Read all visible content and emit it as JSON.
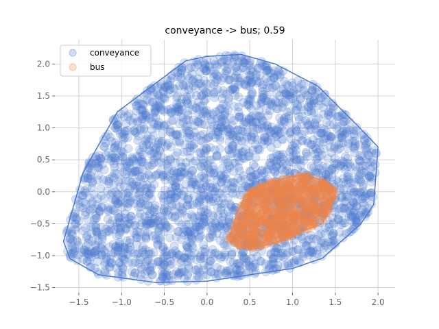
{
  "chart_data": {
    "type": "scatter",
    "title": "conveyance -> bus; 0.59",
    "xlabel": "",
    "ylabel": "",
    "xlim": [
      -1.78,
      2.2
    ],
    "ylim": [
      -1.58,
      2.38
    ],
    "grid": true,
    "legend_position": "top-left",
    "x_ticks": [
      -1.5,
      -1.0,
      -0.5,
      0.0,
      0.5,
      1.0,
      1.5,
      2.0
    ],
    "y_ticks": [
      -1.5,
      -1.0,
      -0.5,
      0.0,
      0.5,
      1.0,
      1.5,
      2.0
    ],
    "x_tick_labels": [
      "−1.5",
      "−1.0",
      "−0.5",
      "0.0",
      "0.5",
      "1.0",
      "1.5",
      "2.0"
    ],
    "y_tick_labels": [
      "−1.5",
      "−1.0",
      "−0.5",
      "0.0",
      "0.5",
      "1.0",
      "1.5",
      "2.0"
    ],
    "series": [
      {
        "name": "conveyance",
        "color": "#4878cf",
        "hull": [
          [
            -1.68,
            -0.78
          ],
          [
            -1.6,
            -1.05
          ],
          [
            -1.27,
            -1.3
          ],
          [
            -0.6,
            -1.42
          ],
          [
            0.0,
            -1.4
          ],
          [
            1.0,
            -1.2
          ],
          [
            1.35,
            -1.04
          ],
          [
            1.8,
            -0.5
          ],
          [
            1.95,
            -0.2
          ],
          [
            2.0,
            0.7
          ],
          [
            1.75,
            1.05
          ],
          [
            1.3,
            1.65
          ],
          [
            0.8,
            2.0
          ],
          [
            0.4,
            2.15
          ],
          [
            0.0,
            2.12
          ],
          [
            -0.25,
            2.05
          ],
          [
            -0.6,
            1.7
          ],
          [
            -1.05,
            1.25
          ],
          [
            -1.45,
            0.3
          ]
        ]
      },
      {
        "name": "bus",
        "color": "#ee854a",
        "hull": [
          [
            0.25,
            -0.75
          ],
          [
            0.35,
            -0.85
          ],
          [
            0.55,
            -0.88
          ],
          [
            0.8,
            -0.8
          ],
          [
            1.05,
            -0.65
          ],
          [
            1.35,
            -0.5
          ],
          [
            1.48,
            -0.1
          ],
          [
            1.5,
            0.0
          ],
          [
            1.4,
            0.15
          ],
          [
            1.15,
            0.27
          ],
          [
            0.95,
            0.23
          ],
          [
            0.6,
            0.08
          ],
          [
            0.45,
            -0.05
          ],
          [
            0.35,
            -0.35
          ]
        ]
      }
    ]
  }
}
